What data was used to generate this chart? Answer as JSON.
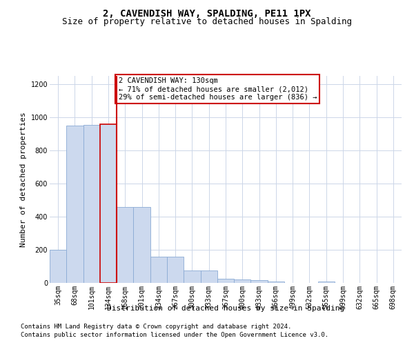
{
  "title": "2, CAVENDISH WAY, SPALDING, PE11 1PX",
  "subtitle": "Size of property relative to detached houses in Spalding",
  "xlabel": "Distribution of detached houses by size in Spalding",
  "ylabel": "Number of detached properties",
  "categories": [
    "35sqm",
    "68sqm",
    "101sqm",
    "134sqm",
    "168sqm",
    "201sqm",
    "234sqm",
    "267sqm",
    "300sqm",
    "333sqm",
    "367sqm",
    "400sqm",
    "433sqm",
    "466sqm",
    "499sqm",
    "532sqm",
    "565sqm",
    "599sqm",
    "632sqm",
    "665sqm",
    "698sqm"
  ],
  "values": [
    200,
    950,
    955,
    960,
    460,
    460,
    160,
    160,
    75,
    75,
    25,
    20,
    15,
    10,
    0,
    0,
    10,
    0,
    0,
    0,
    0
  ],
  "bar_color": "#ccd9ee",
  "bar_edge_color": "#8aaad4",
  "highlight_bar_index": 3,
  "highlight_line_color": "#cc0000",
  "annotation_text": "2 CAVENDISH WAY: 130sqm\n← 71% of detached houses are smaller (2,012)\n29% of semi-detached houses are larger (836) →",
  "annotation_box_color": "#ffffff",
  "annotation_box_edge_color": "#cc0000",
  "ylim": [
    0,
    1250
  ],
  "yticks": [
    0,
    200,
    400,
    600,
    800,
    1000,
    1200
  ],
  "footer_line1": "Contains HM Land Registry data © Crown copyright and database right 2024.",
  "footer_line2": "Contains public sector information licensed under the Open Government Licence v3.0.",
  "bg_color": "#ffffff",
  "grid_color": "#ccd6e8",
  "title_fontsize": 10,
  "subtitle_fontsize": 9,
  "axis_label_fontsize": 8,
  "tick_fontsize": 7,
  "annotation_fontsize": 7.5,
  "footer_fontsize": 6.5
}
